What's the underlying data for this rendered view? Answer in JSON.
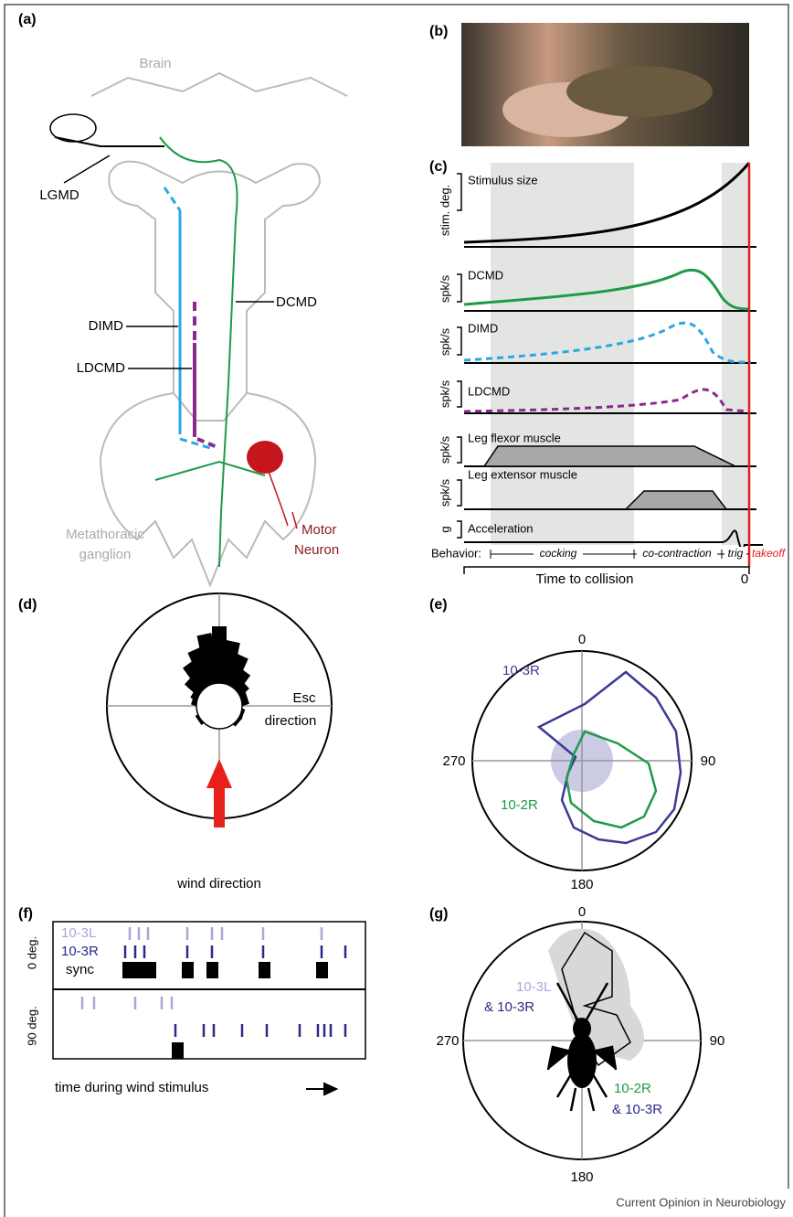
{
  "panel_a": {
    "label": "(a)",
    "brain": "Brain",
    "lgmd": "LGMD",
    "dcmd": "DCMD",
    "dimd": "DIMD",
    "ldcmd": "LDCMD",
    "ganglion": [
      "Metathoracic",
      "ganglion"
    ],
    "motor": [
      "Motor",
      "Neuron"
    ]
  },
  "panel_b": {
    "label": "(b)"
  },
  "panel_c": {
    "label": "(c)",
    "traces": [
      {
        "name": "Stimulus size",
        "unit": "stim. deg."
      },
      {
        "name": "DCMD",
        "unit": "spk/s"
      },
      {
        "name": "DIMD",
        "unit": "spk/s"
      },
      {
        "name": "LDCMD",
        "unit": "spk/s"
      },
      {
        "name": "Leg flexor muscle",
        "unit": "spk/s"
      },
      {
        "name": "Leg extensor muscle",
        "unit": "spk/s"
      },
      {
        "name": "Acceleration",
        "unit": "g"
      }
    ],
    "behavior": "Behavior:",
    "phases": [
      "cocking",
      "co-contraction",
      "trig",
      "takeoff"
    ],
    "xlabel": "Time to collision",
    "xend": "0"
  },
  "panel_d": {
    "label": "(d)",
    "esc": [
      "Esc",
      "direction"
    ],
    "wind": "wind direction"
  },
  "panel_e": {
    "label": "(e)",
    "angles": [
      "0",
      "90",
      "180",
      "270"
    ],
    "series": [
      "10-3R",
      "10-2R"
    ]
  },
  "panel_f": {
    "label": "(f)",
    "rows": [
      "10-3L",
      "10-3R",
      "sync"
    ],
    "conditions": [
      "0 deg.",
      "90 deg."
    ],
    "xlabel": "time during wind stimulus"
  },
  "panel_g": {
    "label": "(g)",
    "angles": [
      "0",
      "90",
      "180",
      "270"
    ],
    "labels": [
      "10-3L",
      "& 10-3R",
      "10-2R",
      "& 10-3R"
    ]
  },
  "footer": "Current Opinion in Neurobiology"
}
